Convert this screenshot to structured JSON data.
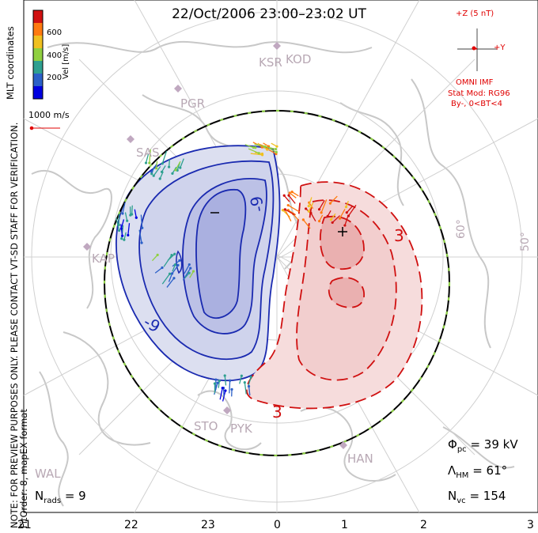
{
  "title": "22/Oct/2006 23:00–23:02 UT",
  "side_note_line1": "NOTE: FOR PREVIEW PURPOSES ONLY. PLEASE CONTACT VT-SD STAFF FOR VERIFICATION.",
  "side_note_line2": "FitOrder: 8, mapEX format",
  "coord_label": "MLT coordinates",
  "colorbar": {
    "label": "Vel [m/s]",
    "ticks": [
      "600",
      "400",
      "200"
    ],
    "colors": [
      "#d01010",
      "#ff7a10",
      "#f0c020",
      "#90d040",
      "#2ea090",
      "#2b60c8",
      "#0000e0"
    ]
  },
  "scale_vector_label": "1000 m/s",
  "imf": {
    "bz_label": "+Z (5 nT)",
    "by_label": "+Y",
    "source": "OMNI IMF",
    "model": "Stat Mod: RG96",
    "condition": "By-, 0<BT<4"
  },
  "latitude_labels": [
    "60°",
    "50°"
  ],
  "radar_labels": [
    "KSR",
    "KOD",
    "PGR",
    "SAS",
    "KAP",
    "STO",
    "PYK",
    "HAN",
    "WAL"
  ],
  "contour_labels": {
    "neg": "-9",
    "neg2": "-9",
    "pos": "3",
    "pos2": "3"
  },
  "min_marker": "–",
  "max_marker": "+",
  "stats": {
    "phi_pc_symbol": "Φ",
    "phi_pc_sub": "pc",
    "phi_pc_value": "= 39 kV",
    "lambda_symbol": "Λ",
    "lambda_sub": "HM",
    "lambda_value": "= 61°",
    "nvc_symbol": "N",
    "nvc_sub": "vc",
    "nvc_value": "= 154",
    "nrads_symbol": "N",
    "nrads_sub": "rads",
    "nrads_value": "= 9"
  },
  "mlt_hours": [
    "21",
    "22",
    "23",
    "0",
    "1",
    "2",
    "3"
  ],
  "colors": {
    "negative_fill": "#dcdff0",
    "negative_core": "#aab0e0",
    "negative_line": "#1a2ab0",
    "positive_fill": "#f6dcdc",
    "positive_core": "#eab0b0",
    "positive_line": "#d01010",
    "coast": "#c8c8c8",
    "grid": "#d0d0d0",
    "heppner_dash": "#8fd048"
  }
}
